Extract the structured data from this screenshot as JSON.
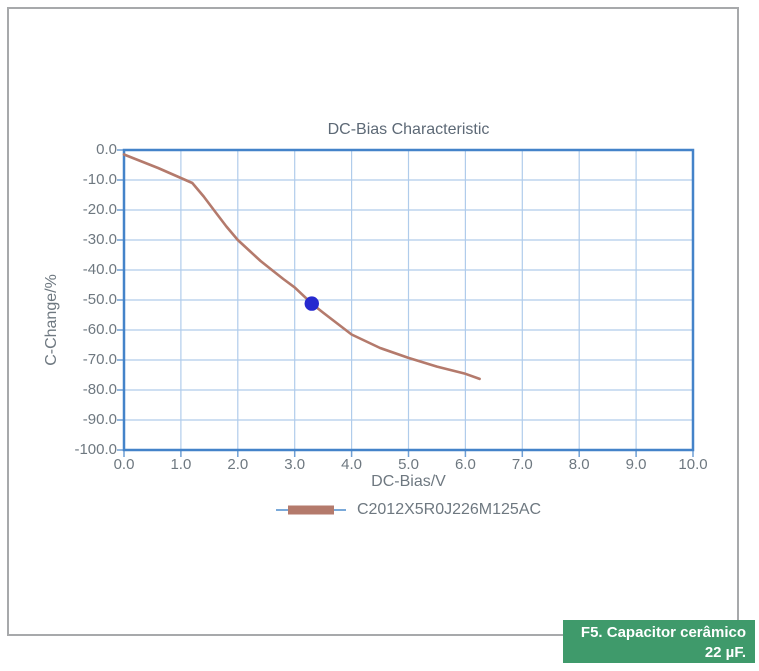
{
  "page": {
    "background": "#ffffff",
    "border_color": "#a7a9ab"
  },
  "figure_caption": {
    "line1": "F5. Capacitor cerâmico",
    "line2": "22 µF.",
    "background": "#3f9a6b",
    "text_color": "#ffffff"
  },
  "chart_data": {
    "type": "line",
    "title": "DC-Bias Characteristic",
    "xlabel": "DC-Bias/V",
    "ylabel": "C-Change/%",
    "xlim": [
      0,
      10
    ],
    "ylim": [
      -100,
      0
    ],
    "xtick_labels": [
      "0.0",
      "1.0",
      "2.0",
      "3.0",
      "4.0",
      "5.0",
      "6.0",
      "7.0",
      "8.0",
      "9.0",
      "10.0"
    ],
    "ytick_labels": [
      "0.0",
      "-10.0",
      "-20.0",
      "-30.0",
      "-40.0",
      "-50.0",
      "-60.0",
      "-70.0",
      "-80.0",
      "-90.0",
      "-100.0"
    ],
    "grid": true,
    "legend_position": "bottom-center",
    "series": [
      {
        "name": "C2012X5R0J226M125AC",
        "color": "#b47a6c",
        "x": [
          0,
          0.6,
          1.2,
          1.4,
          1.6,
          1.8,
          2.0,
          2.2,
          2.4,
          2.6,
          2.8,
          3.0,
          3.3,
          3.5,
          4.0,
          4.5,
          5.0,
          5.5,
          6.0,
          6.25
        ],
        "y": [
          -1.5,
          -6.0,
          -11.0,
          -15.5,
          -20.5,
          -25.5,
          -30.0,
          -33.5,
          -37.0,
          -40.0,
          -43.0,
          -45.8,
          -51.2,
          -54.2,
          -61.5,
          -66.0,
          -69.3,
          -72.2,
          -74.6,
          -76.3
        ]
      }
    ],
    "highlight_point": {
      "x": 3.3,
      "y": -51.2,
      "color": "#2629cf"
    },
    "colors": {
      "frame": "#4483c9",
      "grid": "#b0cceb",
      "tick": "#6f9fd4",
      "label": "#6e7880",
      "title": "#5d6976"
    }
  }
}
